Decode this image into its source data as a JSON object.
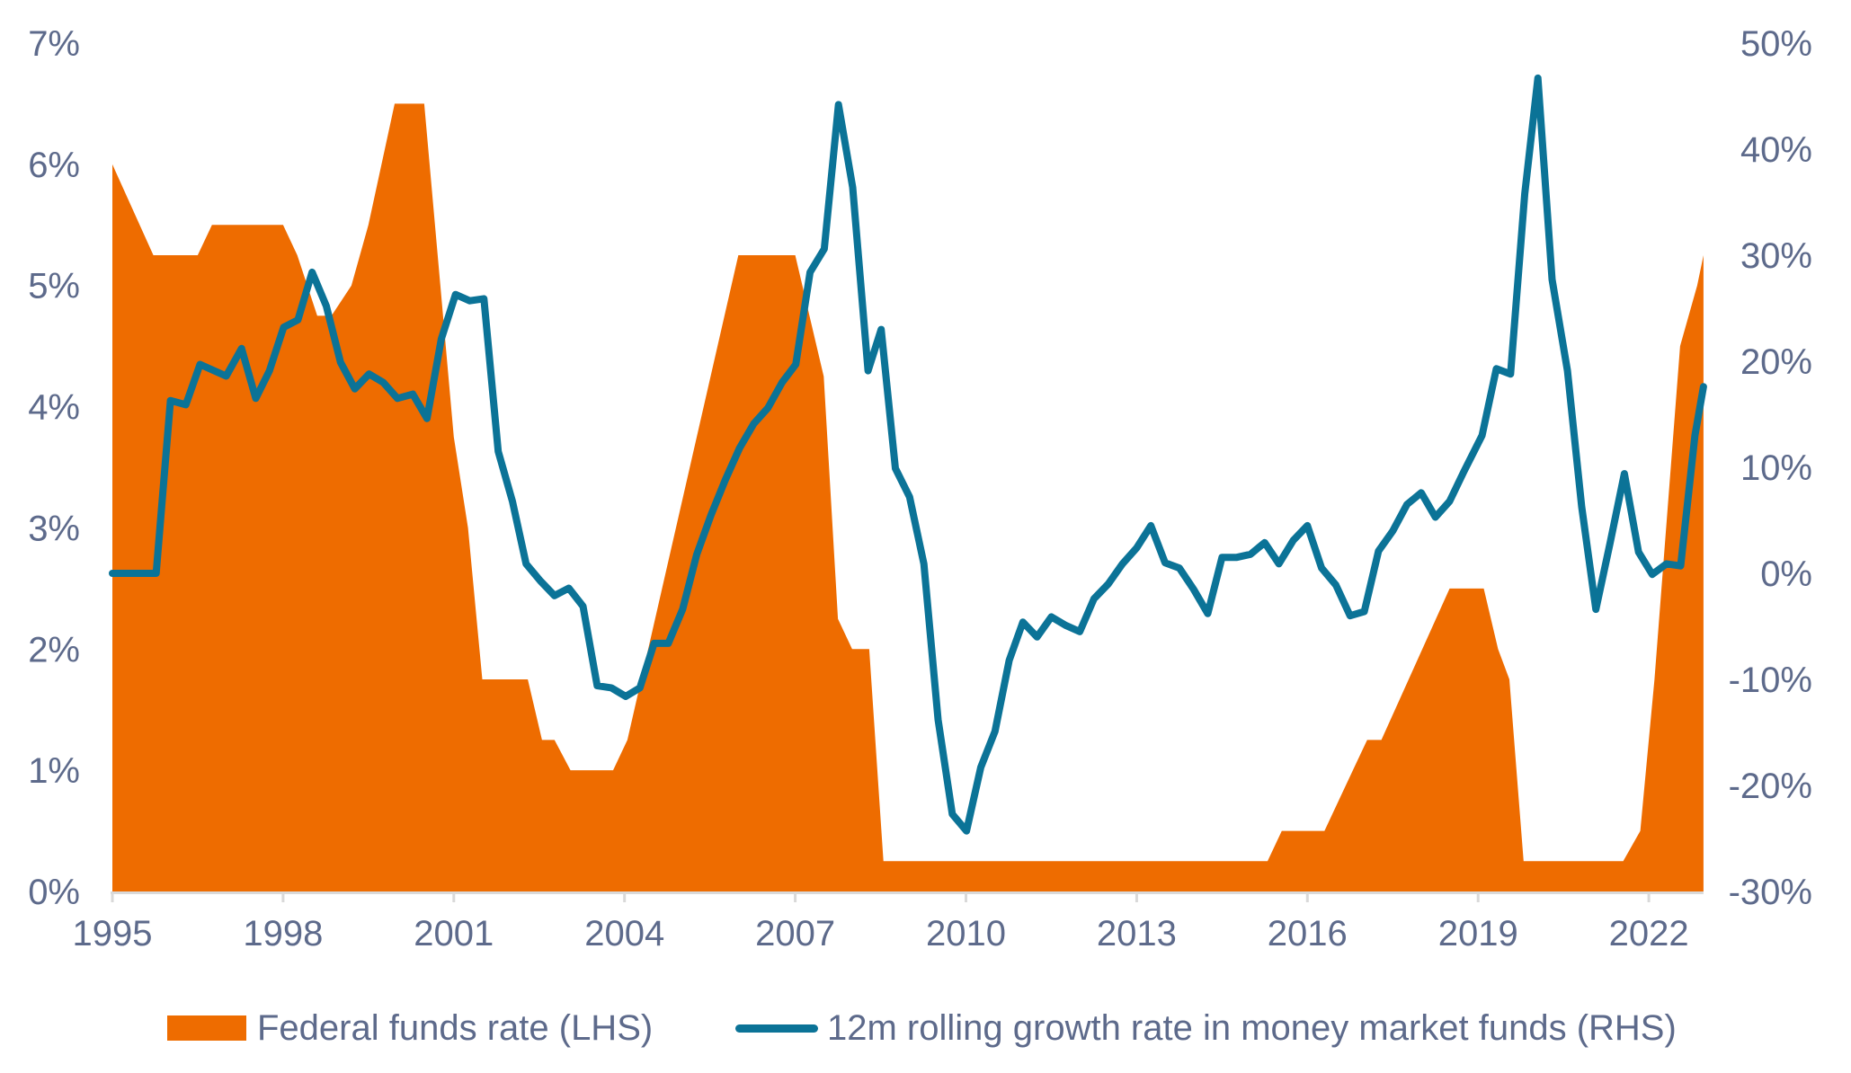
{
  "colors": {
    "fed_funds": "#ee6c00",
    "mmf_growth": "#0b7397",
    "text": "#5d6a8b",
    "axis": "#d9d9d9"
  },
  "chart_data": {
    "type": "area+line",
    "title": "",
    "xlabel": "",
    "ylabel_left": "",
    "ylabel_right": "",
    "x_ticks": [
      "1995",
      "1998",
      "2001",
      "2004",
      "2007",
      "2010",
      "2013",
      "2016",
      "2019",
      "2022"
    ],
    "x_range": [
      1995,
      2022.96
    ],
    "y_left_ticks": [
      "0%",
      "1%",
      "2%",
      "3%",
      "4%",
      "5%",
      "6%",
      "7%"
    ],
    "y_left_range": [
      0,
      7
    ],
    "y_right_ticks": [
      "-30%",
      "-20%",
      "-10%",
      "0%",
      "10%",
      "20%",
      "30%",
      "40%",
      "50%"
    ],
    "y_right_range": [
      -30,
      50
    ],
    "grid": false,
    "legend_position": "bottom",
    "series": [
      {
        "name": "Federal funds rate (LHS)",
        "type": "area",
        "axis": "left",
        "x": [
          1995.0,
          1995.72,
          1996.5,
          1996.75,
          1998.0,
          1998.25,
          1998.6,
          1998.85,
          1999.2,
          1999.5,
          1999.96,
          2000.48,
          2001.0,
          2001.25,
          2001.5,
          2002.3,
          2002.55,
          2002.77,
          2003.05,
          2003.8,
          2004.05,
          2006.0,
          2007.0,
          2007.5,
          2007.75,
          2008.0,
          2008.3,
          2008.55,
          2015.3,
          2015.55,
          2016.3,
          2016.8,
          2017.05,
          2017.3,
          2018.5,
          2019.1,
          2019.35,
          2019.55,
          2019.8,
          2021.55,
          2021.85,
          2022.1,
          2022.55,
          2022.85,
          2022.96
        ],
        "values": [
          6.0,
          5.25,
          5.25,
          5.5,
          5.5,
          5.25,
          4.75,
          4.75,
          5.0,
          5.5,
          6.5,
          6.5,
          3.75,
          3.0,
          1.75,
          1.75,
          1.25,
          1.25,
          1.0,
          1.0,
          1.25,
          5.25,
          5.25,
          4.25,
          2.25,
          2.0,
          2.0,
          0.25,
          0.25,
          0.5,
          0.5,
          1.0,
          1.25,
          1.25,
          2.5,
          2.5,
          2.0,
          1.75,
          0.25,
          0.25,
          0.5,
          1.75,
          4.5,
          5.0,
          5.25
        ]
      },
      {
        "name": "12m rolling growth rate in money market funds (RHS)",
        "type": "line",
        "axis": "right",
        "x": [
          1995.0,
          1995.77,
          1996.02,
          1996.29,
          1996.54,
          1997.0,
          1997.27,
          1997.52,
          1997.76,
          1998.01,
          1998.26,
          1998.51,
          1998.76,
          1999.01,
          1999.26,
          1999.51,
          1999.76,
          2000.01,
          2000.28,
          2000.53,
          2000.78,
          2001.03,
          2001.28,
          2001.53,
          2001.78,
          2002.03,
          2002.27,
          2002.52,
          2002.77,
          2003.02,
          2003.27,
          2003.52,
          2003.77,
          2004.02,
          2004.27,
          2004.52,
          2004.77,
          2005.02,
          2005.27,
          2005.52,
          2005.77,
          2006.02,
          2006.27,
          2006.52,
          2006.77,
          2007.01,
          2007.26,
          2007.51,
          2007.76,
          2008.01,
          2008.28,
          2008.51,
          2008.76,
          2009.01,
          2009.26,
          2009.51,
          2009.76,
          2010.01,
          2010.26,
          2010.51,
          2010.76,
          2011.0,
          2011.25,
          2011.5,
          2011.75,
          2012.0,
          2012.25,
          2012.5,
          2012.75,
          2013.0,
          2013.25,
          2013.5,
          2013.75,
          2014.0,
          2014.25,
          2014.5,
          2014.75,
          2015.0,
          2015.25,
          2015.5,
          2015.75,
          2016.0,
          2016.25,
          2016.5,
          2016.75,
          2017.0,
          2017.25,
          2017.5,
          2017.75,
          2018.0,
          2018.25,
          2018.5,
          2018.75,
          2019.07,
          2019.32,
          2019.57,
          2019.82,
          2020.05,
          2020.3,
          2020.57,
          2020.82,
          2021.07,
          2021.32,
          2021.57,
          2021.82,
          2022.06,
          2022.31,
          2022.56,
          2022.81,
          2022.96
        ],
        "values": [
          0.0,
          0.0,
          16.3,
          15.9,
          19.7,
          18.6,
          21.2,
          16.5,
          19.1,
          23.2,
          23.9,
          28.4,
          25.2,
          19.9,
          17.4,
          18.8,
          18.0,
          16.5,
          16.9,
          14.6,
          22.1,
          26.3,
          25.7,
          25.9,
          11.5,
          6.8,
          0.9,
          -0.7,
          -2.1,
          -1.4,
          -3.1,
          -10.6,
          -10.8,
          -11.6,
          -10.8,
          -6.6,
          -6.6,
          -3.4,
          1.8,
          5.5,
          8.8,
          11.8,
          14.1,
          15.6,
          18.0,
          19.7,
          28.4,
          30.6,
          44.2,
          36.4,
          19.1,
          23.0,
          9.9,
          7.2,
          0.9,
          -13.8,
          -22.7,
          -24.3,
          -18.3,
          -14.9,
          -8.2,
          -4.6,
          -6.0,
          -4.1,
          -4.9,
          -5.5,
          -2.4,
          -1.0,
          0.9,
          2.4,
          4.5,
          1.0,
          0.5,
          -1.5,
          -3.8,
          1.5,
          1.5,
          1.8,
          2.9,
          0.9,
          3.1,
          4.5,
          0.5,
          -1.1,
          -4.0,
          -3.6,
          2.1,
          4.0,
          6.5,
          7.6,
          5.3,
          6.8,
          9.6,
          13.0,
          19.3,
          18.8,
          35.8,
          46.7,
          27.7,
          19.1,
          6.3,
          -3.4,
          2.9,
          9.4,
          2.0,
          -0.1,
          0.9,
          0.7,
          13.0,
          17.6
        ]
      }
    ]
  },
  "legend": {
    "items": [
      {
        "label": "Federal funds rate (LHS)",
        "marker": "area-swatch"
      },
      {
        "label": "12m rolling growth rate in money market funds (RHS)",
        "marker": "line-swatch"
      }
    ]
  }
}
